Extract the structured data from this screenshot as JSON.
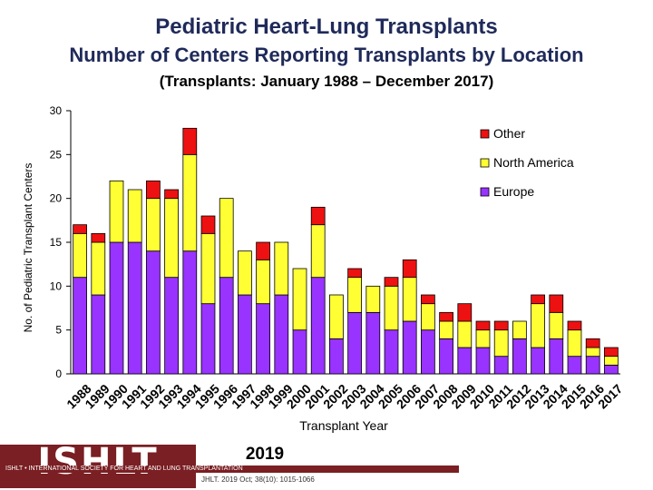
{
  "header": {
    "title": "Pediatric Heart-Lung Transplants",
    "subtitle": "Number of Centers Reporting Transplants by Location",
    "period": "(Transplants: January 1988 – December 2017)"
  },
  "chart_data": {
    "type": "bar",
    "stacked": true,
    "xlabel": "Transplant Year",
    "ylabel": "No. of Pediatric Transplant Centers",
    "ylim": [
      0,
      30
    ],
    "yticks": [
      0,
      5,
      10,
      15,
      20,
      25,
      30
    ],
    "legend_position": "top-right",
    "categories": [
      "1988",
      "1989",
      "1990",
      "1991",
      "1992",
      "1993",
      "1994",
      "1995",
      "1996",
      "1997",
      "1998",
      "1999",
      "2000",
      "2001",
      "2002",
      "2003",
      "2004",
      "2005",
      "2006",
      "2007",
      "2008",
      "2009",
      "2010",
      "2011",
      "2012",
      "2013",
      "2014",
      "2015",
      "2016",
      "2017"
    ],
    "series": [
      {
        "name": "Europe",
        "color": "#9933ff",
        "values": [
          11,
          9,
          15,
          15,
          14,
          11,
          14,
          8,
          11,
          9,
          8,
          9,
          5,
          11,
          4,
          7,
          7,
          5,
          6,
          5,
          4,
          3,
          3,
          2,
          4,
          3,
          4,
          2,
          2,
          1
        ]
      },
      {
        "name": "North America",
        "color": "#ffff33",
        "values": [
          5,
          6,
          7,
          6,
          6,
          9,
          11,
          8,
          9,
          5,
          5,
          6,
          7,
          6,
          5,
          4,
          3,
          5,
          5,
          3,
          2,
          3,
          2,
          3,
          2,
          5,
          3,
          3,
          1,
          1
        ]
      },
      {
        "name": "Other",
        "color": "#ee1111",
        "values": [
          1,
          1,
          0,
          0,
          2,
          1,
          3,
          2,
          0,
          0,
          2,
          0,
          0,
          2,
          0,
          1,
          0,
          1,
          2,
          1,
          1,
          2,
          1,
          1,
          0,
          1,
          2,
          1,
          1,
          1
        ]
      }
    ]
  },
  "footer": {
    "logo_text": "ISHLT",
    "society_name": "ISHLT • INTERNATIONAL SOCIETY FOR HEART AND LUNG TRANSPLANTATION",
    "year": "2019",
    "citation": "JHLT. 2019 Oct; 38(10): 1015-1066"
  }
}
